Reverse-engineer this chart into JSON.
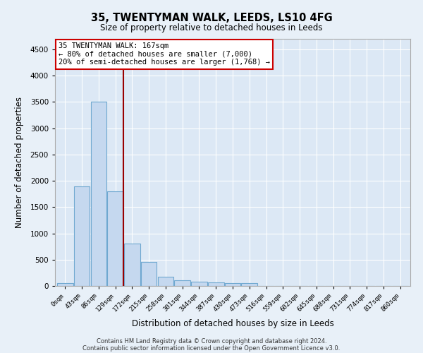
{
  "title1": "35, TWENTYMAN WALK, LEEDS, LS10 4FG",
  "title2": "Size of property relative to detached houses in Leeds",
  "xlabel": "Distribution of detached houses by size in Leeds",
  "ylabel": "Number of detached properties",
  "categories": [
    "0sqm",
    "43sqm",
    "86sqm",
    "129sqm",
    "172sqm",
    "215sqm",
    "258sqm",
    "301sqm",
    "344sqm",
    "387sqm",
    "430sqm",
    "473sqm",
    "516sqm",
    "559sqm",
    "602sqm",
    "645sqm",
    "688sqm",
    "731sqm",
    "774sqm",
    "817sqm",
    "860sqm"
  ],
  "values": [
    50,
    1900,
    3500,
    1800,
    800,
    450,
    175,
    110,
    80,
    65,
    55,
    50,
    5,
    3,
    2,
    2,
    1,
    1,
    1,
    0,
    0
  ],
  "bar_color": "#c5d8ef",
  "bar_edge_color": "#6fa8d0",
  "vline_x": 3.5,
  "vline_color": "#990000",
  "annotation_text": "35 TWENTYMAN WALK: 167sqm\n← 80% of detached houses are smaller (7,000)\n20% of semi-detached houses are larger (1,768) →",
  "annotation_box_facecolor": "#ffffff",
  "annotation_box_edgecolor": "#cc0000",
  "ylim": [
    0,
    4700
  ],
  "yticks": [
    0,
    500,
    1000,
    1500,
    2000,
    2500,
    3000,
    3500,
    4000,
    4500
  ],
  "footer1": "Contains HM Land Registry data © Crown copyright and database right 2024.",
  "footer2": "Contains public sector information licensed under the Open Government Licence v3.0.",
  "bg_color": "#e8f0f8",
  "plot_bg_color": "#dce8f5",
  "grid_color": "#c8d8e8"
}
